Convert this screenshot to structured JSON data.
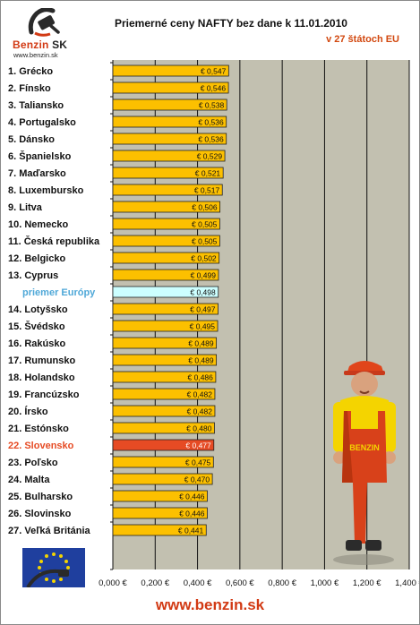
{
  "header": {
    "logo_brand": "Benzin",
    "logo_brand_suffix": "SK",
    "logo_url": "www.benzin.sk",
    "title": "Priemerné ceny NAFTY bez dane k 11.01.2010",
    "subtitle": "v 27 štátoch EU"
  },
  "footer": {
    "url": "www.benzin.sk"
  },
  "colors": {
    "bar": "#fcc000",
    "bar_highlight": "#e64b24",
    "bar_average": "#ccffff",
    "plot_background": "#c2c0b0",
    "label": "#111111",
    "label_highlight": "#e64b24",
    "label_average": "#4fa8d8"
  },
  "chart_data": {
    "type": "bar",
    "orientation": "horizontal",
    "title": "Priemerné ceny NAFTY bez dane k 11.01.2010",
    "subtitle": "v 27 štátoch EU",
    "xlim": [
      0,
      1.4
    ],
    "x_ticks": [
      "0,000 €",
      "0,200 €",
      "0,400 €",
      "0,600 €",
      "0,800 €",
      "1,000 €",
      "1,200 €",
      "1,400 €"
    ],
    "grid": "vertical",
    "highlight_index": 22,
    "average_index": 13,
    "categories": [
      "1. Grécko",
      "2. Fínsko",
      "3. Taliansko",
      "4. Portugalsko",
      "5. Dánsko",
      "6. Španielsko",
      "7. Maďarsko",
      "8. Luxembursko",
      "9. Litva",
      "10. Nemecko",
      "11. Česká republika",
      "12. Belgicko",
      "13. Cyprus",
      "priemer Európy",
      "14. Lotyšsko",
      "15. Švédsko",
      "16. Rakúsko",
      "17. Rumunsko",
      "18. Holandsko",
      "19. Francúzsko",
      "20. Írsko",
      "21. Estónsko",
      "22. Slovensko",
      "23. Poľsko",
      "24. Malta",
      "25. Bulharsko",
      "26. Slovinsko",
      "27. Veľká Británia"
    ],
    "values": [
      0.547,
      0.546,
      0.538,
      0.536,
      0.536,
      0.529,
      0.521,
      0.517,
      0.506,
      0.505,
      0.505,
      0.502,
      0.499,
      0.498,
      0.497,
      0.495,
      0.489,
      0.489,
      0.486,
      0.482,
      0.482,
      0.48,
      0.477,
      0.475,
      0.47,
      0.446,
      0.446,
      0.441
    ],
    "value_labels": [
      "€ 0,547",
      "€ 0,546",
      "€ 0,538",
      "€ 0,536",
      "€ 0,536",
      "€ 0,529",
      "€ 0,521",
      "€ 0,517",
      "€ 0,506",
      "€ 0,505",
      "€ 0,505",
      "€ 0,502",
      "€ 0,499",
      "€ 0,498",
      "€ 0,497",
      "€ 0,495",
      "€ 0,489",
      "€ 0,489",
      "€ 0,486",
      "€ 0,482",
      "€ 0,482",
      "€ 0,480",
      "€ 0,477",
      "€ 0,475",
      "€ 0,470",
      "€ 0,446",
      "€ 0,446",
      "€ 0,441"
    ]
  }
}
